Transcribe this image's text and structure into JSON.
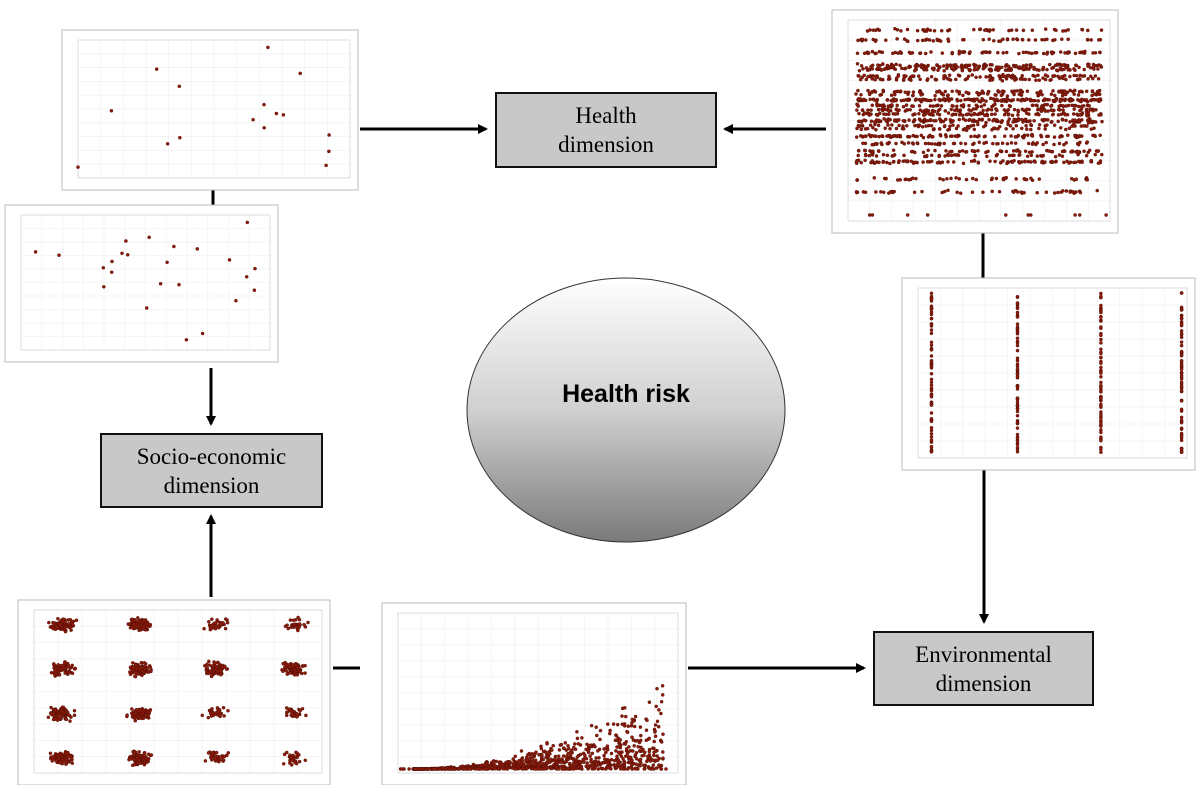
{
  "center": {
    "label": "Health risk"
  },
  "nodes": [
    {
      "label": "Health dimension"
    },
    {
      "label": "Socio-economic dimension"
    },
    {
      "label": "Environmental dimension"
    }
  ]
}
